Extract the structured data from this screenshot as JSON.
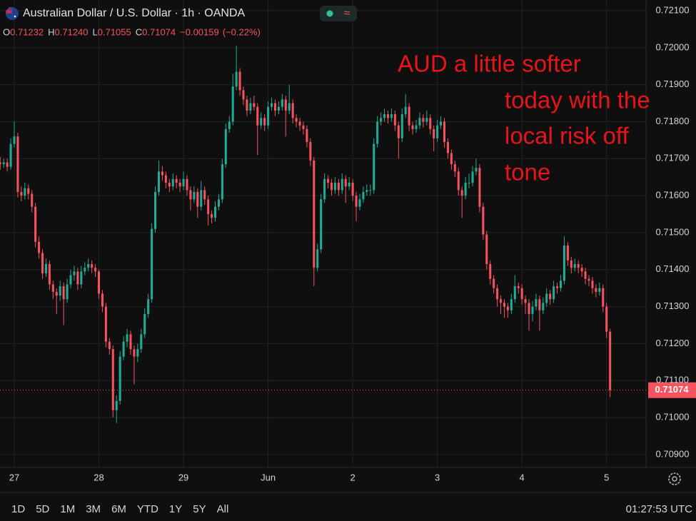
{
  "chart_data": {
    "type": "candlestick",
    "title": "Australian Dollar / U.S. Dollar · 1h · OANDA",
    "ohlc_legend": [
      {
        "name": "O",
        "value": 0.71232,
        "label": "0.71232"
      },
      {
        "name": "H",
        "value": 0.7124,
        "label": "0.71240"
      },
      {
        "name": "L",
        "value": 0.71055,
        "label": "0.71055"
      },
      {
        "name": "C",
        "value": 0.71074,
        "label": "0.71074"
      }
    ],
    "change": {
      "value": -0.00159,
      "label": "−0.00159"
    },
    "change_pct": {
      "value": -0.22,
      "label": "(−0.22%)"
    },
    "up_color": "#22ab94",
    "down_color": "#f7525f",
    "grid": true,
    "xlim": [
      -0.05,
      183.2
    ],
    "xticks": [
      {
        "value": 4,
        "label": "27"
      },
      {
        "value": 28,
        "label": "28"
      },
      {
        "value": 52,
        "label": "29"
      },
      {
        "value": 76,
        "label": "Jun"
      },
      {
        "value": 100,
        "label": "2"
      },
      {
        "value": 124,
        "label": "3"
      },
      {
        "value": 148,
        "label": "4"
      },
      {
        "value": 172,
        "label": "5"
      }
    ],
    "ylim": [
      0.70865,
      0.72129
    ],
    "yticks": [
      {
        "value": 0.709,
        "label": "0.70900"
      },
      {
        "value": 0.71,
        "label": "0.71000"
      },
      {
        "value": 0.711,
        "label": "0.71100"
      },
      {
        "value": 0.712,
        "label": "0.71200"
      },
      {
        "value": 0.713,
        "label": "0.71300"
      },
      {
        "value": 0.714,
        "label": "0.71400"
      },
      {
        "value": 0.715,
        "label": "0.71500"
      },
      {
        "value": 0.716,
        "label": "0.71600"
      },
      {
        "value": 0.717,
        "label": "0.71700"
      },
      {
        "value": 0.718,
        "label": "0.71800"
      },
      {
        "value": 0.719,
        "label": "0.71900"
      },
      {
        "value": 0.72,
        "label": "0.72000"
      },
      {
        "value": 0.721,
        "label": "0.72100"
      }
    ],
    "last_price": 0.71074,
    "annotation": {
      "color": "#e8141c",
      "lines": [
        "AUD a little softer",
        "today with the",
        "local risk off",
        "tone"
      ]
    },
    "candles": [
      [
        0.7169,
        0.71705,
        0.7167,
        0.71685
      ],
      [
        0.71685,
        0.717,
        0.71675,
        0.7169
      ],
      [
        0.7169,
        0.717,
        0.71665,
        0.71678
      ],
      [
        0.71678,
        0.71755,
        0.7167,
        0.7174
      ],
      [
        0.7174,
        0.718,
        0.7173,
        0.7176
      ],
      [
        0.7176,
        0.7177,
        0.71595,
        0.7161
      ],
      [
        0.7161,
        0.71625,
        0.71585,
        0.716
      ],
      [
        0.716,
        0.71635,
        0.7159,
        0.7162
      ],
      [
        0.7162,
        0.7163,
        0.7159,
        0.71605
      ],
      [
        0.71605,
        0.71615,
        0.71555,
        0.7157
      ],
      [
        0.7157,
        0.7158,
        0.7146,
        0.71475
      ],
      [
        0.71475,
        0.7149,
        0.7143,
        0.71445
      ],
      [
        0.71445,
        0.71455,
        0.71375,
        0.7139
      ],
      [
        0.7139,
        0.7143,
        0.7138,
        0.71415
      ],
      [
        0.71415,
        0.71425,
        0.71345,
        0.7136
      ],
      [
        0.7136,
        0.7137,
        0.7132,
        0.7134
      ],
      [
        0.7134,
        0.7135,
        0.7128,
        0.7133
      ],
      [
        0.7133,
        0.7137,
        0.71315,
        0.71355
      ],
      [
        0.71355,
        0.71365,
        0.7125,
        0.7132
      ],
      [
        0.7132,
        0.71375,
        0.7131,
        0.7136
      ],
      [
        0.7136,
        0.714,
        0.7135,
        0.71385
      ],
      [
        0.71385,
        0.7141,
        0.7137,
        0.71395
      ],
      [
        0.71395,
        0.71405,
        0.71345,
        0.7136
      ],
      [
        0.7136,
        0.7141,
        0.7135,
        0.71395
      ],
      [
        0.71395,
        0.7142,
        0.71385,
        0.71405
      ],
      [
        0.71405,
        0.7143,
        0.71395,
        0.71415
      ],
      [
        0.71415,
        0.71425,
        0.7139,
        0.71405
      ],
      [
        0.71405,
        0.71415,
        0.7138,
        0.71395
      ],
      [
        0.71395,
        0.714,
        0.7132,
        0.71335
      ],
      [
        0.71335,
        0.71345,
        0.71285,
        0.713
      ],
      [
        0.713,
        0.7131,
        0.7119,
        0.71205
      ],
      [
        0.71205,
        0.71215,
        0.7117,
        0.71185
      ],
      [
        0.71185,
        0.71195,
        0.71,
        0.7102
      ],
      [
        0.7102,
        0.7106,
        0.70985,
        0.71045
      ],
      [
        0.71045,
        0.7118,
        0.71035,
        0.71165
      ],
      [
        0.71165,
        0.7122,
        0.71155,
        0.71205
      ],
      [
        0.71205,
        0.7124,
        0.7119,
        0.71225
      ],
      [
        0.71225,
        0.71235,
        0.7117,
        0.71185
      ],
      [
        0.71185,
        0.71195,
        0.7109,
        0.71165
      ],
      [
        0.71165,
        0.712,
        0.7115,
        0.71185
      ],
      [
        0.71185,
        0.7124,
        0.71175,
        0.71225
      ],
      [
        0.71225,
        0.71295,
        0.71215,
        0.7128
      ],
      [
        0.7128,
        0.71335,
        0.7127,
        0.7132
      ],
      [
        0.7132,
        0.71525,
        0.7131,
        0.7151
      ],
      [
        0.7151,
        0.71625,
        0.715,
        0.7161
      ],
      [
        0.7161,
        0.71695,
        0.716,
        0.71665
      ],
      [
        0.71665,
        0.7168,
        0.7164,
        0.71655
      ],
      [
        0.71655,
        0.71665,
        0.7162,
        0.71635
      ],
      [
        0.71635,
        0.71645,
        0.7161,
        0.71625
      ],
      [
        0.71625,
        0.7166,
        0.71615,
        0.71645
      ],
      [
        0.71645,
        0.71655,
        0.7162,
        0.71635
      ],
      [
        0.71635,
        0.71645,
        0.7161,
        0.71625
      ],
      [
        0.71625,
        0.71665,
        0.71615,
        0.71645
      ],
      [
        0.71645,
        0.71655,
        0.716,
        0.71615
      ],
      [
        0.71615,
        0.71625,
        0.7156,
        0.7159
      ],
      [
        0.7159,
        0.71625,
        0.7158,
        0.7161
      ],
      [
        0.7161,
        0.7162,
        0.7154,
        0.7157
      ],
      [
        0.7157,
        0.7164,
        0.7156,
        0.71615
      ],
      [
        0.71615,
        0.71625,
        0.71575,
        0.7159
      ],
      [
        0.7159,
        0.716,
        0.7152,
        0.7155
      ],
      [
        0.7155,
        0.7156,
        0.71525,
        0.7154
      ],
      [
        0.7154,
        0.71585,
        0.7153,
        0.7157
      ],
      [
        0.7157,
        0.71605,
        0.7156,
        0.7159
      ],
      [
        0.7159,
        0.717,
        0.7158,
        0.71685
      ],
      [
        0.71685,
        0.71795,
        0.71675,
        0.7178
      ],
      [
        0.7178,
        0.71815,
        0.7177,
        0.718
      ],
      [
        0.718,
        0.7193,
        0.7179,
        0.71895
      ],
      [
        0.71895,
        0.72005,
        0.71885,
        0.71935
      ],
      [
        0.71935,
        0.71945,
        0.7187,
        0.71885
      ],
      [
        0.71885,
        0.71895,
        0.71845,
        0.7186
      ],
      [
        0.7186,
        0.7187,
        0.71815,
        0.7183
      ],
      [
        0.7183,
        0.71865,
        0.7182,
        0.7185
      ],
      [
        0.7185,
        0.7187,
        0.7183,
        0.7184
      ],
      [
        0.7184,
        0.7185,
        0.7171,
        0.7179
      ],
      [
        0.7179,
        0.71825,
        0.7178,
        0.7181
      ],
      [
        0.7181,
        0.7182,
        0.71775,
        0.7179
      ],
      [
        0.7179,
        0.71855,
        0.7178,
        0.7184
      ],
      [
        0.7184,
        0.71865,
        0.7183,
        0.7185
      ],
      [
        0.7185,
        0.7186,
        0.71815,
        0.7183
      ],
      [
        0.7183,
        0.71855,
        0.7182,
        0.7184
      ],
      [
        0.7184,
        0.71875,
        0.7183,
        0.7186
      ],
      [
        0.7186,
        0.7187,
        0.7176,
        0.7183
      ],
      [
        0.7183,
        0.719,
        0.7182,
        0.7185
      ],
      [
        0.7185,
        0.7186,
        0.71795,
        0.7181
      ],
      [
        0.7181,
        0.7182,
        0.71785,
        0.718
      ],
      [
        0.718,
        0.7181,
        0.71775,
        0.7179
      ],
      [
        0.7179,
        0.718,
        0.71765,
        0.7178
      ],
      [
        0.7178,
        0.7179,
        0.7173,
        0.71745
      ],
      [
        0.71745,
        0.71755,
        0.7168,
        0.71695
      ],
      [
        0.71695,
        0.71705,
        0.71355,
        0.71405
      ],
      [
        0.71405,
        0.7147,
        0.71395,
        0.71455
      ],
      [
        0.71455,
        0.71605,
        0.71445,
        0.7159
      ],
      [
        0.7159,
        0.7166,
        0.7158,
        0.71645
      ],
      [
        0.71645,
        0.71655,
        0.7162,
        0.71635
      ],
      [
        0.71635,
        0.71645,
        0.716,
        0.71615
      ],
      [
        0.71615,
        0.7165,
        0.71605,
        0.71635
      ],
      [
        0.71635,
        0.71645,
        0.716,
        0.71615
      ],
      [
        0.71615,
        0.7166,
        0.71605,
        0.71645
      ],
      [
        0.71645,
        0.71655,
        0.7158,
        0.71625
      ],
      [
        0.71625,
        0.7165,
        0.71615,
        0.71635
      ],
      [
        0.71635,
        0.71645,
        0.71585,
        0.716
      ],
      [
        0.716,
        0.7161,
        0.7153,
        0.7157
      ],
      [
        0.7157,
        0.71605,
        0.7156,
        0.7159
      ],
      [
        0.7159,
        0.71625,
        0.7158,
        0.7161
      ],
      [
        0.7161,
        0.7163,
        0.716,
        0.71615
      ],
      [
        0.71615,
        0.7163,
        0.716,
        0.71615
      ],
      [
        0.71615,
        0.71755,
        0.71605,
        0.7174
      ],
      [
        0.7174,
        0.71815,
        0.7173,
        0.718
      ],
      [
        0.718,
        0.71825,
        0.7179,
        0.7181
      ],
      [
        0.7181,
        0.71835,
        0.718,
        0.7182
      ],
      [
        0.7182,
        0.7183,
        0.71795,
        0.7181
      ],
      [
        0.7181,
        0.71835,
        0.718,
        0.7182
      ],
      [
        0.7182,
        0.7183,
        0.71775,
        0.7179
      ],
      [
        0.7179,
        0.718,
        0.717,
        0.71755
      ],
      [
        0.71755,
        0.71835,
        0.71745,
        0.7182
      ],
      [
        0.7182,
        0.71875,
        0.7181,
        0.7184
      ],
      [
        0.7184,
        0.7185,
        0.71775,
        0.7179
      ],
      [
        0.7179,
        0.718,
        0.71765,
        0.7178
      ],
      [
        0.7178,
        0.71805,
        0.7177,
        0.7179
      ],
      [
        0.7179,
        0.71825,
        0.7178,
        0.7181
      ],
      [
        0.7181,
        0.7182,
        0.71785,
        0.718
      ],
      [
        0.718,
        0.7183,
        0.7179,
        0.7181
      ],
      [
        0.7181,
        0.7182,
        0.71765,
        0.7178
      ],
      [
        0.7178,
        0.7179,
        0.7172,
        0.71755
      ],
      [
        0.71755,
        0.71805,
        0.71745,
        0.7179
      ],
      [
        0.7179,
        0.71815,
        0.7178,
        0.718
      ],
      [
        0.718,
        0.7181,
        0.7173,
        0.71745
      ],
      [
        0.71745,
        0.71755,
        0.717,
        0.71715
      ],
      [
        0.71715,
        0.71725,
        0.7167,
        0.71685
      ],
      [
        0.71685,
        0.71695,
        0.7165,
        0.71665
      ],
      [
        0.71665,
        0.71675,
        0.716,
        0.71615
      ],
      [
        0.71615,
        0.71625,
        0.7154,
        0.716
      ],
      [
        0.716,
        0.7165,
        0.7159,
        0.71635
      ],
      [
        0.71635,
        0.7166,
        0.7162,
        0.71635
      ],
      [
        0.71635,
        0.7168,
        0.71625,
        0.71665
      ],
      [
        0.71665,
        0.717,
        0.71655,
        0.71675
      ],
      [
        0.71675,
        0.71685,
        0.71555,
        0.7157
      ],
      [
        0.7157,
        0.7158,
        0.7148,
        0.71495
      ],
      [
        0.71495,
        0.71505,
        0.714,
        0.71415
      ],
      [
        0.71415,
        0.71425,
        0.7136,
        0.71375
      ],
      [
        0.71375,
        0.71385,
        0.71335,
        0.7135
      ],
      [
        0.7135,
        0.7136,
        0.713,
        0.7132
      ],
      [
        0.7132,
        0.7133,
        0.7128,
        0.7131
      ],
      [
        0.7131,
        0.7132,
        0.7127,
        0.713
      ],
      [
        0.713,
        0.7131,
        0.7127,
        0.7129
      ],
      [
        0.7129,
        0.71335,
        0.7128,
        0.7132
      ],
      [
        0.7132,
        0.71385,
        0.7131,
        0.71355
      ],
      [
        0.71355,
        0.71365,
        0.71335,
        0.7135
      ],
      [
        0.7135,
        0.7136,
        0.71305,
        0.7132
      ],
      [
        0.7132,
        0.7133,
        0.7128,
        0.7131
      ],
      [
        0.7131,
        0.7132,
        0.71235,
        0.7128
      ],
      [
        0.7128,
        0.71315,
        0.7126,
        0.713
      ],
      [
        0.713,
        0.71335,
        0.7129,
        0.7132
      ],
      [
        0.7132,
        0.7133,
        0.71235,
        0.7129
      ],
      [
        0.7129,
        0.71325,
        0.7128,
        0.7131
      ],
      [
        0.7131,
        0.7135,
        0.713,
        0.71335
      ],
      [
        0.71335,
        0.71345,
        0.71305,
        0.7132
      ],
      [
        0.7132,
        0.7137,
        0.7131,
        0.71355
      ],
      [
        0.71355,
        0.71365,
        0.71335,
        0.7135
      ],
      [
        0.7135,
        0.71385,
        0.7134,
        0.7137
      ],
      [
        0.7137,
        0.7149,
        0.7136,
        0.71465
      ],
      [
        0.71465,
        0.71475,
        0.7141,
        0.71425
      ],
      [
        0.71425,
        0.71435,
        0.7139,
        0.71405
      ],
      [
        0.71405,
        0.7143,
        0.71395,
        0.71415
      ],
      [
        0.71415,
        0.71425,
        0.7139,
        0.71405
      ],
      [
        0.71405,
        0.71415,
        0.7138,
        0.71395
      ],
      [
        0.71395,
        0.71405,
        0.7136,
        0.71375
      ],
      [
        0.71375,
        0.71385,
        0.71355,
        0.7137
      ],
      [
        0.7137,
        0.7138,
        0.71335,
        0.7135
      ],
      [
        0.7135,
        0.7136,
        0.71325,
        0.7134
      ],
      [
        0.7134,
        0.71365,
        0.7133,
        0.7135
      ],
      [
        0.7135,
        0.7136,
        0.71285,
        0.713
      ],
      [
        0.713,
        0.7131,
        0.71215,
        0.71232
      ],
      [
        0.71232,
        0.7124,
        0.71055,
        0.71074
      ]
    ]
  },
  "toolbar": {
    "ranges": [
      "1D",
      "5D",
      "1M",
      "3M",
      "6M",
      "YTD",
      "1Y",
      "5Y",
      "All"
    ],
    "time": "01:27:53 UTC"
  }
}
